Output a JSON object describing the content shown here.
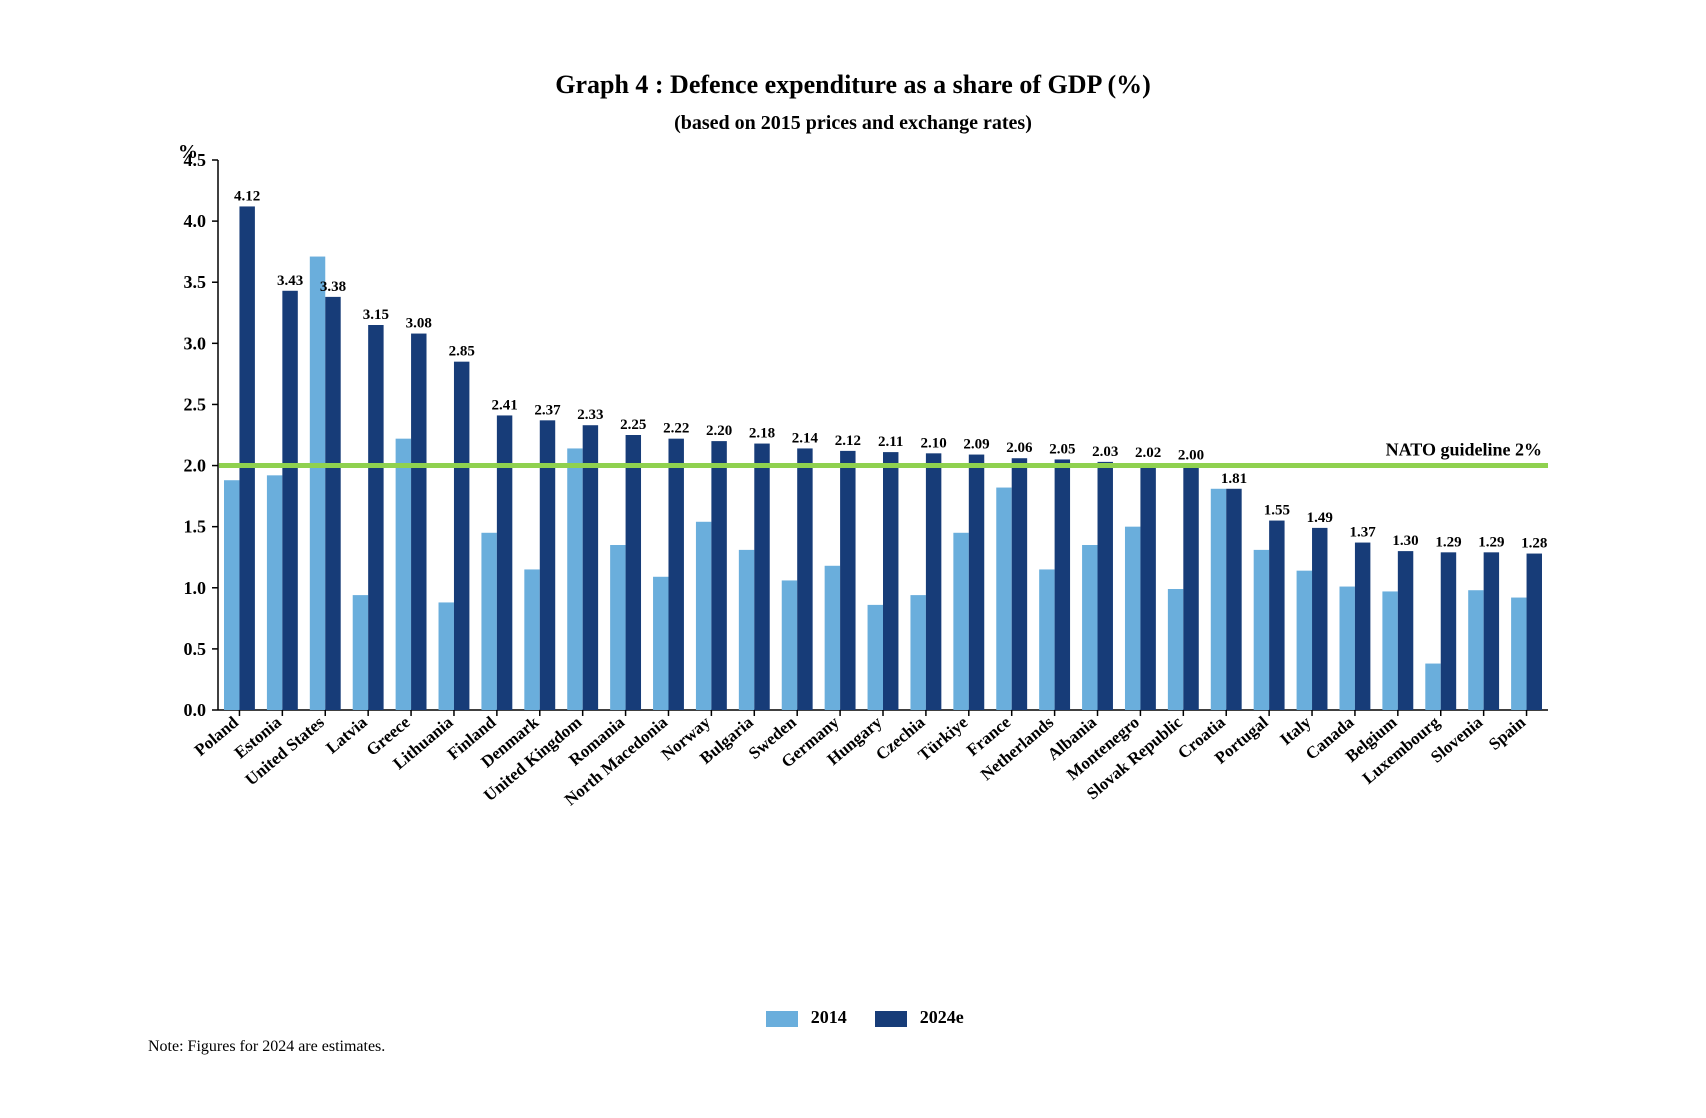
{
  "chart": {
    "type": "bar",
    "title": "Graph 4 : Defence expenditure as a share of GDP (%)",
    "title_fontsize": 26,
    "subtitle": "(based on 2015 prices and exchange rates)",
    "subtitle_fontsize": 20,
    "note": "Note: Figures for 2024 are estimates.",
    "note_fontsize": 16,
    "y_axis_title": "%",
    "y_axis_title_fontsize": 20,
    "background_color": "#ffffff",
    "axis_color": "#000000",
    "tick_font_size": 18,
    "category_font_size": 17,
    "value_label_font_size": 15,
    "ylim": [
      0.0,
      4.5
    ],
    "ytick_step": 0.5,
    "guideline": {
      "value": 2.0,
      "label": "NATO guideline 2%",
      "color": "#8fd14f",
      "line_width": 5,
      "label_fontsize": 18
    },
    "series": [
      {
        "name": "2014",
        "color": "#6aaedc"
      },
      {
        "name": "2024e",
        "color": "#173c78"
      }
    ],
    "bar_group_gap_ratio": 0.28,
    "categories": [
      "Poland",
      "Estonia",
      "United States",
      "Latvia",
      "Greece",
      "Lithuania",
      "Finland",
      "Denmark",
      "United Kingdom",
      "Romania",
      "North Macedonia",
      "Norway",
      "Bulgaria",
      "Sweden",
      "Germany",
      "Hungary",
      "Czechia",
      "Türkiye",
      "France",
      "Netherlands",
      "Albania",
      "Montenegro",
      "Slovak Republic",
      "Croatia",
      "Portugal",
      "Italy",
      "Canada",
      "Belgium",
      "Luxembourg",
      "Slovenia",
      "Spain"
    ],
    "values_2014": [
      1.88,
      1.92,
      3.71,
      0.94,
      2.22,
      0.88,
      1.45,
      1.15,
      2.14,
      1.35,
      1.09,
      1.54,
      1.31,
      1.06,
      1.18,
      0.86,
      0.94,
      1.45,
      1.82,
      1.15,
      1.35,
      1.5,
      0.99,
      1.81,
      1.31,
      1.14,
      1.01,
      0.97,
      0.38,
      0.98,
      0.92
    ],
    "values_2024e": [
      4.12,
      3.43,
      3.38,
      3.15,
      3.08,
      2.85,
      2.41,
      2.37,
      2.33,
      2.25,
      2.22,
      2.2,
      2.18,
      2.14,
      2.12,
      2.11,
      2.1,
      2.09,
      2.06,
      2.05,
      2.03,
      2.02,
      2.0,
      1.81,
      1.55,
      1.49,
      1.37,
      1.3,
      1.29,
      1.29,
      1.28
    ],
    "legend_fontsize": 18
  }
}
